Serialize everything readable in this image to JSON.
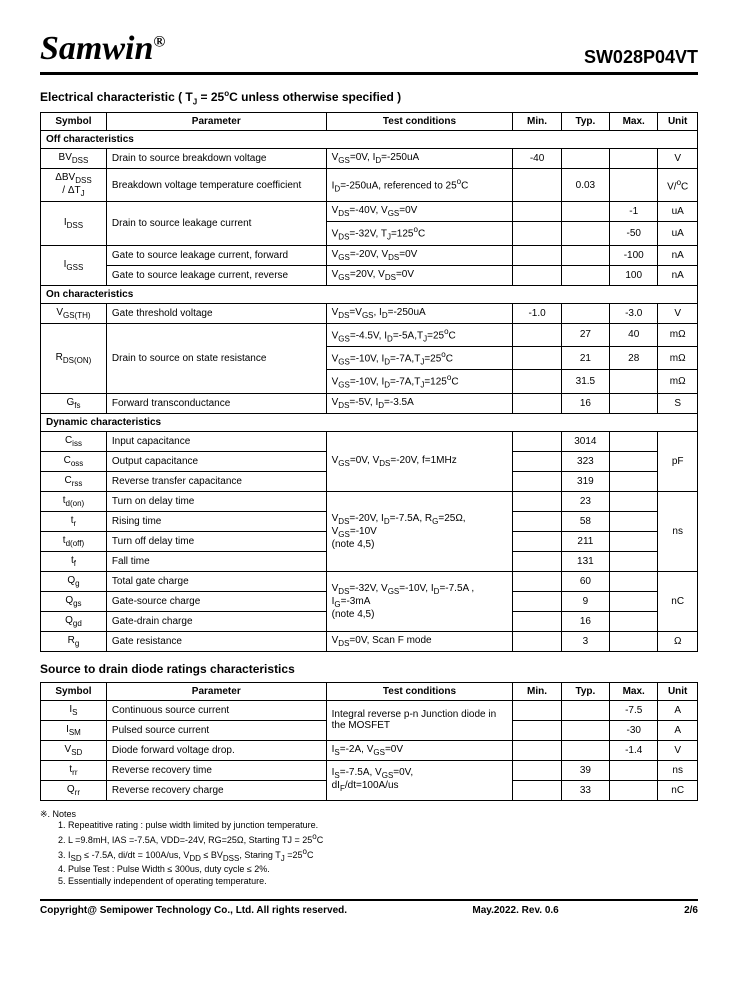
{
  "header": {
    "brand": "Samwin",
    "reg": "®",
    "part": "SW028P04VT"
  },
  "sec1_title": "Electrical characteristic ( Tᴊ = 25°C unless otherwise specified )",
  "th": {
    "symbol": "Symbol",
    "param": "Parameter",
    "cond": "Test conditions",
    "min": "Min.",
    "typ": "Typ.",
    "max": "Max.",
    "unit": "Unit"
  },
  "sec_off": "Off characteristics",
  "sec_on": "On characteristics",
  "sec_dyn": "Dynamic characteristics",
  "off": [
    {
      "sym": "BV_DSS",
      "param": "Drain to source breakdown voltage",
      "cond": "V_GS=0V, I_D=-250uA",
      "min": "-40",
      "typ": "",
      "max": "",
      "unit": "V"
    },
    {
      "sym": "ΔBV_DSS / ΔT_J",
      "param": "Breakdown voltage temperature coefficient",
      "cond": "I_D=-250uA, referenced to 25°C",
      "min": "",
      "typ": "0.03",
      "max": "",
      "unit": "V/°C"
    },
    {
      "sym": "I_DSS",
      "rowspan": 2,
      "param": "Drain to source leakage current",
      "cond": "V_DS=-40V, V_GS=0V",
      "min": "",
      "typ": "",
      "max": "-1",
      "unit": "uA"
    },
    {
      "cond": "V_DS=-32V, T_J=125°C",
      "min": "",
      "typ": "",
      "max": "-50",
      "unit": "uA"
    },
    {
      "sym": "I_GSS",
      "rowspan": 2,
      "param": "Gate to source leakage current, forward",
      "cond": "V_GS=-20V, V_DS=0V",
      "min": "",
      "typ": "",
      "max": "-100",
      "unit": "nA"
    },
    {
      "param": "Gate to source leakage current, reverse",
      "cond": "V_GS=20V, V_DS=0V",
      "min": "",
      "typ": "",
      "max": "100",
      "unit": "nA"
    }
  ],
  "on": [
    {
      "sym": "V_GS(TH)",
      "param": "Gate threshold voltage",
      "cond": "V_DS=V_GS, I_D=-250uA",
      "min": "-1.0",
      "typ": "",
      "max": "-3.0",
      "unit": "V"
    },
    {
      "sym": "R_DS(ON)",
      "rowspan": 3,
      "param": "Drain to source on state resistance",
      "cond": "V_GS=-4.5V, I_D=-5A,T_J=25°C",
      "min": "",
      "typ": "27",
      "max": "40",
      "unit": "mΩ"
    },
    {
      "cond": "V_GS=-10V, I_D=-7A,T_J=25°C",
      "min": "",
      "typ": "21",
      "max": "28",
      "unit": "mΩ"
    },
    {
      "cond": "V_GS=-10V, I_D=-7A,T_J=125°C",
      "min": "",
      "typ": "31.5",
      "max": "",
      "unit": "mΩ"
    },
    {
      "sym": "G_fs",
      "param": "Forward transconductance",
      "cond": "V_DS=-5V, I_D=-3.5A",
      "min": "",
      "typ": "16",
      "max": "",
      "unit": "S"
    }
  ],
  "dyn": [
    {
      "sym": "C_iss",
      "param": "Input capacitance",
      "cond_rowspan": 3,
      "cond": "V_GS=0V, V_DS=-20V, f=1MHz",
      "typ": "3014",
      "unit_rowspan": 3,
      "unit": "pF"
    },
    {
      "sym": "C_oss",
      "param": "Output capacitance",
      "typ": "323"
    },
    {
      "sym": "C_rss",
      "param": "Reverse transfer capacitance",
      "typ": "319"
    },
    {
      "sym": "t_d(on)",
      "param": "Turn on delay time",
      "cond_rowspan": 4,
      "cond": "V_DS=-20V, I_D=-7.5A, R_G=25Ω, V_GS=-10V (note 4,5)",
      "typ": "23",
      "unit_rowspan": 4,
      "unit": "ns"
    },
    {
      "sym": "t_r",
      "param": "Rising time",
      "typ": "58"
    },
    {
      "sym": "t_d(off)",
      "param": "Turn off delay time",
      "typ": "211"
    },
    {
      "sym": "t_f",
      "param": "Fall time",
      "typ": "131"
    },
    {
      "sym": "Q_g",
      "param": "Total gate charge",
      "cond_rowspan": 3,
      "cond": "V_DS=-32V, V_GS=-10V, I_D=-7.5A , I_G=-3mA (note 4,5)",
      "typ": "60",
      "unit_rowspan": 3,
      "unit": "nC"
    },
    {
      "sym": "Q_gs",
      "param": "Gate-source charge",
      "typ": "9"
    },
    {
      "sym": "Q_gd",
      "param": "Gate-drain charge",
      "typ": "16"
    },
    {
      "sym": "R_g",
      "param": "Gate resistance",
      "cond": "V_DS=0V, Scan F mode",
      "typ": "3",
      "unit": "Ω"
    }
  ],
  "sec2_title": "Source to drain diode ratings characteristics",
  "diode": [
    {
      "sym": "I_S",
      "param": "Continuous source current",
      "cond_rowspan": 2,
      "cond": "Integral reverse p-n Junction diode in the MOSFET",
      "min": "",
      "typ": "",
      "max": "-7.5",
      "unit": "A"
    },
    {
      "sym": "I_SM",
      "param": "Pulsed source current",
      "min": "",
      "typ": "",
      "max": "-30",
      "unit": "A"
    },
    {
      "sym": "V_SD",
      "param": "Diode forward voltage drop.",
      "cond": "I_S=-2A, V_GS=0V",
      "min": "",
      "typ": "",
      "max": "-1.4",
      "unit": "V"
    },
    {
      "sym": "t_rr",
      "param": "Reverse recovery time",
      "cond_rowspan": 2,
      "cond": "I_S=-7.5A, V_GS=0V, dI_F/dt=100A/us",
      "min": "",
      "typ": "39",
      "max": "",
      "unit": "ns"
    },
    {
      "sym": "Q_rr",
      "param": "Reverse recovery charge",
      "min": "",
      "typ": "33",
      "max": "",
      "unit": "nC"
    }
  ],
  "notes_head": "※. Notes",
  "notes": [
    "Repeatitive rating : pulse width limited by junction temperature.",
    "L =9.8mH, IAS =-7.5A, VDD=-24V, RG=25Ω, Starting TJ = 25°C",
    "I_SD ≤ -7.5A, di/dt = 100A/us, V_DD ≤ BV_DSS, Staring T_J =25°C",
    "Pulse Test : Pulse Width ≤ 300us, duty cycle ≤ 2%.",
    "Essentially independent of operating temperature."
  ],
  "footer": {
    "left": "Copyright@ Semipower Technology Co., Ltd. All rights reserved.",
    "mid": "May.2022. Rev. 0.6",
    "right": "2/6"
  }
}
